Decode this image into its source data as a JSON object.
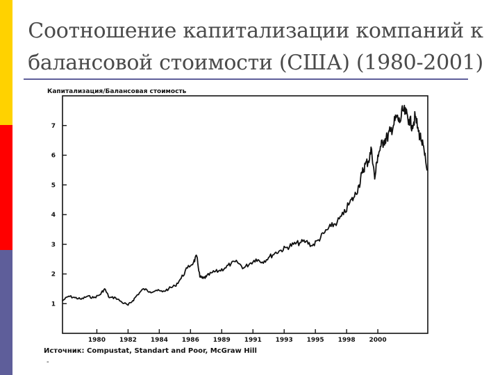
{
  "slide": {
    "title": "Соотношение капитализации компаний к балансовой стоимости (США) (1980-2001)",
    "accent_colors": {
      "top": "#FFD200",
      "middle": "#FF0000",
      "bottom": "#5E5E9A",
      "rule": "#5E5E9A"
    }
  },
  "source": "Источник: Compustat, Standart and Poor, McGraw Hill",
  "trailing_mark": "-",
  "chart_data": {
    "type": "line",
    "title": "",
    "ylabel": "Капитализация/Балансовая стоимость",
    "xlabel": "",
    "xlim": [
      1977.8,
      2001.2
    ],
    "ylim": [
      0,
      8
    ],
    "yticks": [
      "1",
      "2",
      "3",
      "4",
      "5",
      "6",
      "7"
    ],
    "xticks": [
      {
        "label": "1980",
        "x": 1980
      },
      {
        "label": "1982",
        "x": 1982
      },
      {
        "label": "1984",
        "x": 1984
      },
      {
        "label": "1986",
        "x": 1986
      },
      {
        "label": "1989",
        "x": 1988
      },
      {
        "label": "1991",
        "x": 1990
      },
      {
        "label": "1993",
        "x": 1992
      },
      {
        "label": "1995",
        "x": 1994
      },
      {
        "label": "1998",
        "x": 1996
      },
      {
        "label": "2000",
        "x": 1998
      }
    ],
    "grid": false,
    "series": [
      {
        "color": "#111111",
        "x": [
          1977.8,
          1978.2,
          1978.6,
          1979.0,
          1979.4,
          1979.8,
          1980.2,
          1980.5,
          1980.8,
          1981.2,
          1981.6,
          1982.0,
          1982.3,
          1982.6,
          1983.0,
          1983.4,
          1983.8,
          1984.2,
          1984.6,
          1985.0,
          1985.4,
          1985.8,
          1986.2,
          1986.4,
          1986.6,
          1986.8,
          1987.0,
          1987.4,
          1987.8,
          1988.2,
          1988.6,
          1989.0,
          1989.4,
          1989.8,
          1990.2,
          1990.6,
          1991.0,
          1991.4,
          1991.8,
          1992.2,
          1992.6,
          1993.0,
          1993.4,
          1993.8,
          1994.2,
          1994.6,
          1995.0,
          1995.4,
          1995.8,
          1996.2,
          1996.5,
          1996.8,
          1997.0,
          1997.2,
          1997.4,
          1997.6,
          1997.8,
          1998.0,
          1998.2,
          1998.4,
          1998.6,
          1998.8,
          1999.0,
          1999.2,
          1999.4,
          1999.6,
          1999.8,
          2000.0,
          2000.2,
          2000.4,
          2000.6,
          2000.8,
          2001.0,
          2001.15
        ],
        "y": [
          1.1,
          1.25,
          1.2,
          1.15,
          1.25,
          1.2,
          1.3,
          1.5,
          1.2,
          1.2,
          1.05,
          0.95,
          1.1,
          1.3,
          1.5,
          1.4,
          1.45,
          1.4,
          1.5,
          1.6,
          1.85,
          2.2,
          2.4,
          2.6,
          1.9,
          1.85,
          1.9,
          2.05,
          2.1,
          2.2,
          2.35,
          2.4,
          2.2,
          2.35,
          2.5,
          2.4,
          2.55,
          2.7,
          2.8,
          2.9,
          3.0,
          3.05,
          3.1,
          2.95,
          3.15,
          3.4,
          3.6,
          3.75,
          4.0,
          4.4,
          4.6,
          5.0,
          5.4,
          5.7,
          5.8,
          6.2,
          5.2,
          6.0,
          6.3,
          6.5,
          6.6,
          6.8,
          7.0,
          7.3,
          7.1,
          7.5,
          7.4,
          7.2,
          7.0,
          7.3,
          6.8,
          6.5,
          6.0,
          5.5
        ]
      }
    ]
  }
}
